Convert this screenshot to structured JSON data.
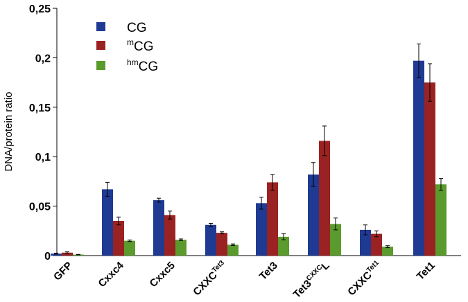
{
  "chart_data": {
    "type": "bar",
    "title": "",
    "xlabel": "",
    "ylabel": "DNA/protein ratio",
    "ylim": [
      0,
      0.25
    ],
    "yticks": [
      "0",
      "0,05",
      "0,1",
      "0,15",
      "0,2",
      "0,25"
    ],
    "y_tick_values": [
      0,
      0.05,
      0.1,
      0.15,
      0.2,
      0.25
    ],
    "categories": [
      {
        "base": "GFP",
        "sup": ""
      },
      {
        "base": "Cxxc4",
        "sup": ""
      },
      {
        "base": "Cxxc5",
        "sup": ""
      },
      {
        "base": "CXXC",
        "sup": "Tet3"
      },
      {
        "base": "Tet3",
        "sup": ""
      },
      {
        "base": "Tet3",
        "sup": "CXXC",
        "suffix": "L"
      },
      {
        "base": "CXXC",
        "sup": "Tet1"
      },
      {
        "base": "Tet1",
        "sup": ""
      }
    ],
    "series": [
      {
        "name": "CG",
        "name_sup": "",
        "color": "#1f3a93",
        "values": [
          0.002,
          0.067,
          0.056,
          0.031,
          0.053,
          0.082,
          0.026,
          0.197
        ],
        "errors": [
          0.0005,
          0.007,
          0.002,
          0.0015,
          0.006,
          0.012,
          0.005,
          0.017
        ]
      },
      {
        "name": "CG",
        "name_sup": "m",
        "color": "#9b2222",
        "values": [
          0.003,
          0.035,
          0.041,
          0.023,
          0.074,
          0.116,
          0.022,
          0.175
        ],
        "errors": [
          0.0008,
          0.004,
          0.004,
          0.001,
          0.008,
          0.015,
          0.003,
          0.019
        ]
      },
      {
        "name": "CG",
        "name_sup": "hm",
        "color": "#5b9a2c",
        "values": [
          0.001,
          0.015,
          0.016,
          0.011,
          0.019,
          0.032,
          0.009,
          0.072
        ],
        "errors": [
          0.0002,
          0.0008,
          0.0008,
          0.0008,
          0.003,
          0.006,
          0.001,
          0.006
        ]
      }
    ],
    "legend_position": "top-left",
    "grid": false
  }
}
